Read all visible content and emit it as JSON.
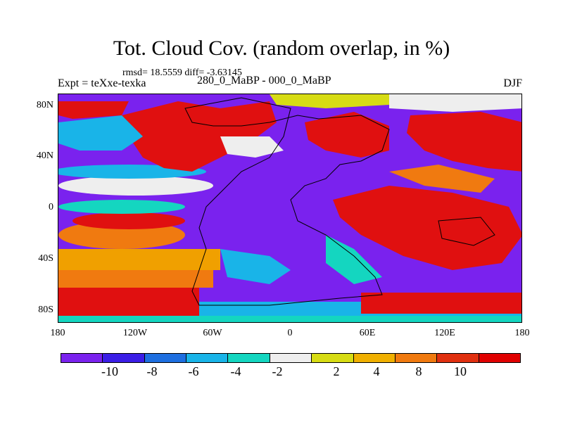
{
  "title": "Tot. Cloud Cov. (random overlap, in %)",
  "stats": "rmsd= 18.5559 diff= -3.63145",
  "experiment": "Expt = teXxe-texka",
  "period": "280_0_MaBP - 000_0_MaBP",
  "season": "DJF",
  "map": {
    "lat_ticks": [
      "80N",
      "40N",
      "0",
      "40S",
      "80S"
    ],
    "lon_ticks": [
      "180",
      "120W",
      "60W",
      "0",
      "60E",
      "120E",
      "180"
    ]
  },
  "colorbar": {
    "colors": [
      "#7a22ee",
      "#3b1ee6",
      "#1e6fe0",
      "#19b4e8",
      "#14d6c0",
      "#eeeeee",
      "#d7dc14",
      "#f0b000",
      "#f07a10",
      "#e03010",
      "#e00000"
    ],
    "labels": [
      "-10",
      "-8",
      "-6",
      "-4",
      "-2",
      "2",
      "4",
      "8",
      "10"
    ]
  },
  "palette": {
    "purple": "#7a22ee",
    "blue": "#3b1ee6",
    "cyan": "#19b4e8",
    "teal": "#14d6c0",
    "white": "#eeeeee",
    "yellow": "#d7dc14",
    "orange": "#f0a000",
    "red": "#e01010"
  }
}
